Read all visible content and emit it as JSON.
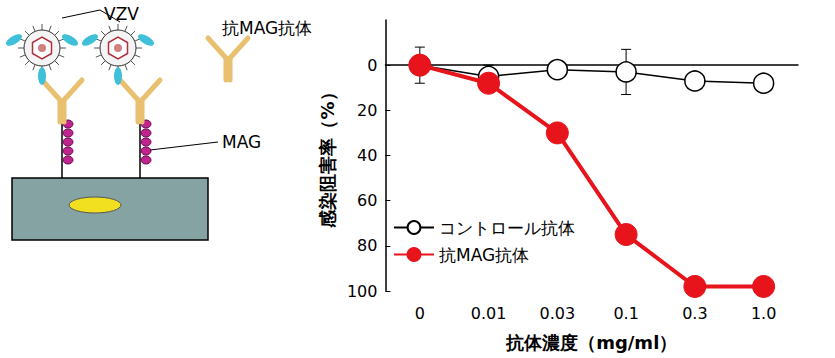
{
  "diagram": {
    "virus_label": "VZV",
    "antibody_label": "抗MAG抗体",
    "receptor_label": "MAG"
  },
  "chart_data": {
    "type": "line",
    "x_label": "抗体濃度（mg/ml）",
    "y_label": "感染阻害率（%）",
    "categories": [
      "0",
      "0.01",
      "0.03",
      "0.1",
      "0.3",
      "1.0"
    ],
    "series": [
      {
        "name": "コントロール抗体",
        "color": "#000000",
        "marker": "circle_open",
        "values": [
          0,
          5,
          2,
          3,
          7,
          8
        ],
        "errors": [
          8,
          5,
          null,
          10,
          null,
          null
        ]
      },
      {
        "name": "抗MAG抗体",
        "color": "#e8141b",
        "marker": "circle",
        "values": [
          0,
          8,
          30,
          75,
          98,
          98
        ]
      }
    ],
    "ylim": [
      100,
      -20
    ],
    "yticks": [
      0,
      20,
      40,
      60,
      80,
      100
    ],
    "grid": false,
    "legend": "lower left"
  }
}
